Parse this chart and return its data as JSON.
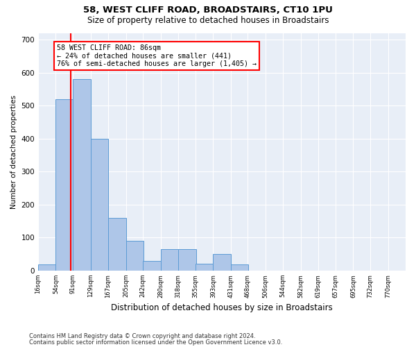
{
  "title": "58, WEST CLIFF ROAD, BROADSTAIRS, CT10 1PU",
  "subtitle": "Size of property relative to detached houses in Broadstairs",
  "xlabel": "Distribution of detached houses by size in Broadstairs",
  "ylabel": "Number of detached properties",
  "footnote1": "Contains HM Land Registry data © Crown copyright and database right 2024.",
  "footnote2": "Contains public sector information licensed under the Open Government Licence v3.0.",
  "bar_color": "#aec6e8",
  "bar_edge_color": "#5b9bd5",
  "background_color": "#e8eef7",
  "grid_color": "#ffffff",
  "annotation_text": "58 WEST CLIFF ROAD: 86sqm\n← 24% of detached houses are smaller (441)\n76% of semi-detached houses are larger (1,405) →",
  "red_line_x": 86,
  "bin_edges": [
    16,
    54,
    91,
    129,
    167,
    205,
    242,
    280,
    318,
    355,
    393,
    431,
    468,
    506,
    544,
    582,
    619,
    657,
    695,
    732,
    770
  ],
  "bar_heights": [
    18,
    520,
    580,
    400,
    160,
    90,
    30,
    65,
    65,
    20,
    50,
    18,
    0,
    0,
    0,
    0,
    0,
    0,
    0,
    0
  ],
  "ylim": [
    0,
    720
  ],
  "yticks": [
    0,
    100,
    200,
    300,
    400,
    500,
    600,
    700
  ],
  "tick_labels": [
    "16sqm",
    "54sqm",
    "91sqm",
    "129sqm",
    "167sqm",
    "205sqm",
    "242sqm",
    "280sqm",
    "318sqm",
    "355sqm",
    "393sqm",
    "431sqm",
    "468sqm",
    "506sqm",
    "544sqm",
    "582sqm",
    "619sqm",
    "657sqm",
    "695sqm",
    "732sqm",
    "770sqm"
  ]
}
